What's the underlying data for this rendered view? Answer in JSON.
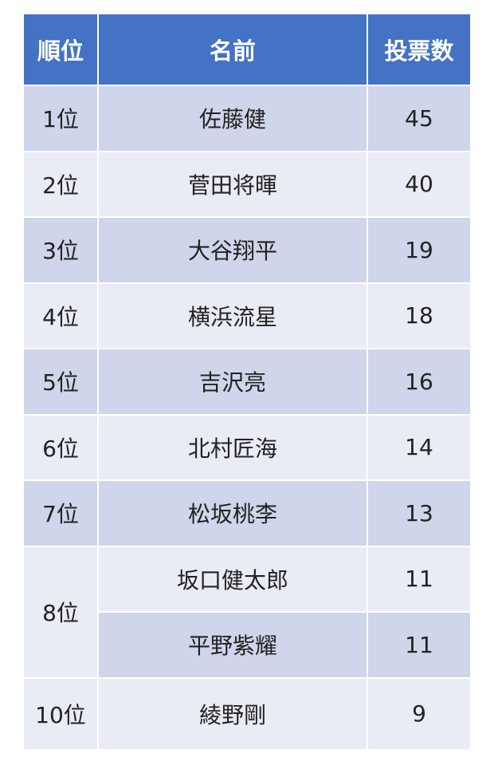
{
  "colors": {
    "header": "#4472C4",
    "row_dark": "#CFD5EA",
    "row_light": "#E9EBF5"
  },
  "table": {
    "headers": [
      "順位",
      "名前",
      "投票数"
    ],
    "rows": [
      {
        "rank": "1位",
        "name": "佐藤健",
        "votes": "45"
      },
      {
        "rank": "2位",
        "name": "菅田将暉",
        "votes": "40"
      },
      {
        "rank": "3位",
        "name": "大谷翔平",
        "votes": "19"
      },
      {
        "rank": "4位",
        "name": "横浜流星",
        "votes": "18"
      },
      {
        "rank": "5位",
        "name": "吉沢亮",
        "votes": "16"
      },
      {
        "rank": "6位",
        "name": "北村匠海",
        "votes": "14"
      },
      {
        "rank": "7位",
        "name": "松坂桃李",
        "votes": "13"
      },
      {
        "rank": "8位",
        "name": "坂口健太郎",
        "votes": "11"
      },
      {
        "rank": "8位",
        "name": "平野紫耀",
        "votes": "11"
      },
      {
        "rank": "10位",
        "name": "綾野剛",
        "votes": "9"
      }
    ]
  }
}
